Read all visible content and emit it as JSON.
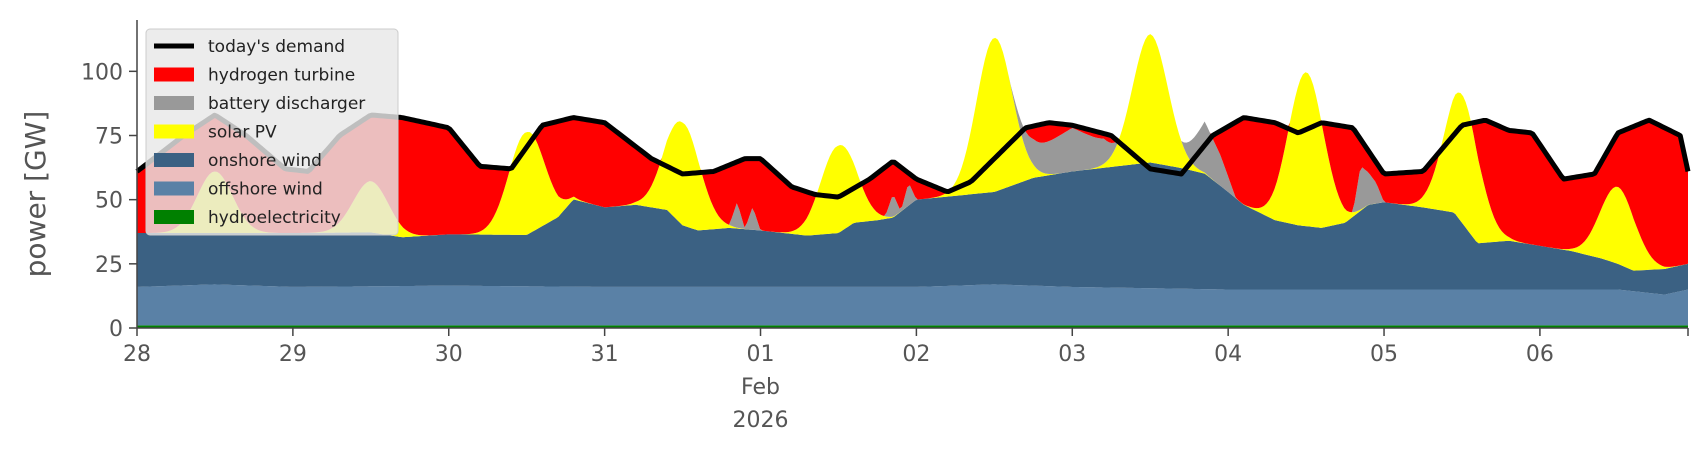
{
  "chart_data": {
    "type": "area",
    "ylabel": "power [GW]",
    "ylim": [
      0,
      120
    ],
    "yticks": [
      0,
      25,
      50,
      75,
      100
    ],
    "xlim_days": [
      0,
      9.95
    ],
    "xticks": [
      {
        "day": 0,
        "label": "28"
      },
      {
        "day": 1,
        "label": "29"
      },
      {
        "day": 2,
        "label": "30"
      },
      {
        "day": 3,
        "label": "31"
      },
      {
        "day": 4,
        "label": "01",
        "sub1": "Feb",
        "sub2": "2026"
      },
      {
        "day": 5,
        "label": "02"
      },
      {
        "day": 6,
        "label": "03"
      },
      {
        "day": 7,
        "label": "04"
      },
      {
        "day": 8,
        "label": "05"
      },
      {
        "day": 9,
        "label": "06"
      }
    ],
    "grid": false,
    "legend_position": "top-left",
    "series": [
      {
        "name": "hydroelectricity",
        "color": "#008000",
        "base": 1.0
      },
      {
        "name": "offshore wind",
        "color": "#5a81a6",
        "points": [
          [
            0,
            15
          ],
          [
            0.5,
            16
          ],
          [
            1,
            15
          ],
          [
            2,
            15.5
          ],
          [
            3,
            15
          ],
          [
            3.5,
            15
          ],
          [
            4.5,
            15
          ],
          [
            5,
            15
          ],
          [
            5.5,
            16
          ],
          [
            6,
            15
          ],
          [
            6.5,
            14.5
          ],
          [
            7,
            14
          ],
          [
            8,
            14
          ],
          [
            9,
            14
          ],
          [
            9.5,
            14
          ],
          [
            9.8,
            12
          ],
          [
            9.95,
            14
          ]
        ]
      },
      {
        "name": "onshore wind",
        "color": "#3b6183",
        "points": [
          [
            0,
            21
          ],
          [
            0.5,
            20
          ],
          [
            1,
            21
          ],
          [
            1.5,
            21
          ],
          [
            1.7,
            19
          ],
          [
            2,
            20
          ],
          [
            2.5,
            20
          ],
          [
            2.7,
            27
          ],
          [
            2.8,
            34
          ],
          [
            3,
            31
          ],
          [
            3.2,
            32
          ],
          [
            3.4,
            30
          ],
          [
            3.5,
            24
          ],
          [
            3.6,
            22
          ],
          [
            3.8,
            23
          ],
          [
            4,
            22
          ],
          [
            4.3,
            20
          ],
          [
            4.5,
            21
          ],
          [
            4.6,
            25
          ],
          [
            4.75,
            26
          ],
          [
            4.85,
            27
          ],
          [
            5,
            34
          ],
          [
            5.5,
            36
          ],
          [
            5.75,
            42
          ],
          [
            6,
            45
          ],
          [
            6.5,
            49
          ],
          [
            6.7,
            47
          ],
          [
            6.85,
            45
          ],
          [
            7,
            38
          ],
          [
            7.1,
            33
          ],
          [
            7.3,
            27
          ],
          [
            7.45,
            25
          ],
          [
            7.6,
            24
          ],
          [
            7.75,
            26
          ],
          [
            7.9,
            33
          ],
          [
            8,
            34
          ],
          [
            8.25,
            32
          ],
          [
            8.45,
            30
          ],
          [
            8.6,
            18
          ],
          [
            8.8,
            19
          ],
          [
            9,
            17
          ],
          [
            9.2,
            15
          ],
          [
            9.4,
            12
          ],
          [
            9.6,
            8
          ],
          [
            9.8,
            10
          ],
          [
            9.95,
            10
          ]
        ]
      },
      {
        "name": "solar PV",
        "color": "#ffff00",
        "peaks": [
          [
            0.5,
            24
          ],
          [
            1.5,
            20
          ],
          [
            2.5,
            40
          ],
          [
            3.5,
            40
          ],
          [
            4.5,
            34
          ],
          [
            5.5,
            60
          ],
          [
            6.5,
            50
          ],
          [
            7.5,
            60
          ],
          [
            8.5,
            50
          ],
          [
            9.5,
            30
          ]
        ],
        "width": 0.16
      },
      {
        "name": "battery discharger",
        "color": "#999999",
        "points": [
          [
            0,
            0
          ],
          [
            3.8,
            0
          ],
          [
            3.85,
            10
          ],
          [
            3.9,
            0
          ],
          [
            3.95,
            9
          ],
          [
            4.0,
            0
          ],
          [
            4.8,
            0
          ],
          [
            4.85,
            9
          ],
          [
            4.9,
            0
          ],
          [
            4.95,
            9
          ],
          [
            5.0,
            0
          ],
          [
            5.6,
            0
          ],
          [
            5.75,
            10
          ],
          [
            6.0,
            17
          ],
          [
            6.2,
            10
          ],
          [
            6.3,
            0
          ],
          [
            6.7,
            0
          ],
          [
            6.85,
            20
          ],
          [
            6.95,
            12
          ],
          [
            7.05,
            0
          ],
          [
            7.8,
            0
          ],
          [
            7.85,
            17
          ],
          [
            7.95,
            8
          ],
          [
            8.0,
            0
          ],
          [
            9.95,
            0
          ]
        ]
      },
      {
        "name": "hydrogen turbine",
        "color": "#ff0000"
      },
      {
        "name": "today's demand",
        "color": "#000000",
        "points": [
          [
            0,
            61
          ],
          [
            0.3,
            75
          ],
          [
            0.5,
            83
          ],
          [
            0.7,
            75
          ],
          [
            0.95,
            62
          ],
          [
            1.1,
            61
          ],
          [
            1.3,
            75
          ],
          [
            1.5,
            83
          ],
          [
            1.7,
            82
          ],
          [
            1.85,
            80
          ],
          [
            2,
            78
          ],
          [
            2.2,
            63
          ],
          [
            2.4,
            62
          ],
          [
            2.6,
            79
          ],
          [
            2.8,
            82
          ],
          [
            3,
            80
          ],
          [
            3.3,
            66
          ],
          [
            3.5,
            60
          ],
          [
            3.7,
            61
          ],
          [
            3.9,
            66
          ],
          [
            4,
            66
          ],
          [
            4.2,
            55
          ],
          [
            4.35,
            52
          ],
          [
            4.5,
            51
          ],
          [
            4.7,
            58
          ],
          [
            4.85,
            65
          ],
          [
            5,
            58
          ],
          [
            5.2,
            53
          ],
          [
            5.35,
            57
          ],
          [
            5.5,
            66
          ],
          [
            5.7,
            78
          ],
          [
            5.85,
            80
          ],
          [
            6,
            79
          ],
          [
            6.25,
            75
          ],
          [
            6.5,
            62
          ],
          [
            6.7,
            60
          ],
          [
            6.9,
            75
          ],
          [
            7.1,
            82
          ],
          [
            7.3,
            80
          ],
          [
            7.45,
            76
          ],
          [
            7.6,
            80
          ],
          [
            7.8,
            78
          ],
          [
            8,
            60
          ],
          [
            8.25,
            61
          ],
          [
            8.5,
            79
          ],
          [
            8.65,
            81
          ],
          [
            8.8,
            77
          ],
          [
            8.95,
            76
          ],
          [
            9.15,
            58
          ],
          [
            9.35,
            60
          ],
          [
            9.5,
            76
          ],
          [
            9.7,
            81
          ],
          [
            9.9,
            75
          ],
          [
            9.95,
            61
          ]
        ]
      }
    ],
    "legend": [
      "today's demand",
      "hydrogen turbine",
      "battery discharger",
      "solar PV",
      "onshore wind",
      "offshore wind",
      "hydroelectricity"
    ]
  }
}
